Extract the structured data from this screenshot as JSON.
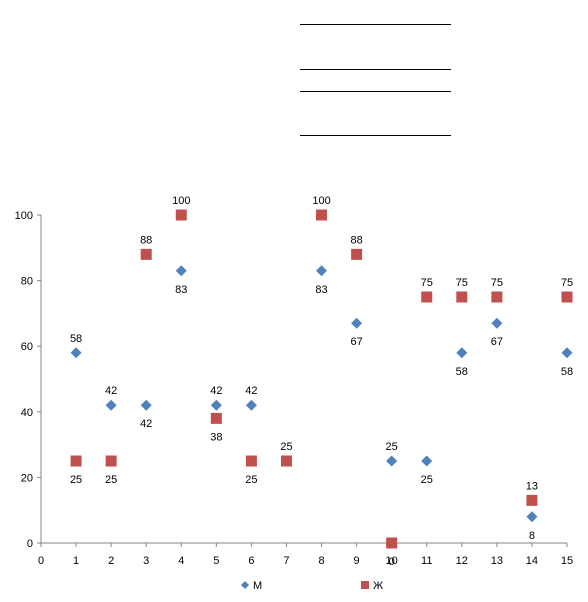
{
  "chart_data": {
    "type": "scatter",
    "title": "",
    "xlabel": "",
    "ylabel": "",
    "xlim": [
      0,
      15
    ],
    "ylim": [
      0,
      100
    ],
    "xticks": [
      0,
      1,
      2,
      3,
      4,
      5,
      6,
      7,
      8,
      9,
      10,
      11,
      12,
      13,
      14,
      15
    ],
    "yticks": [
      0,
      20,
      40,
      60,
      80,
      100
    ],
    "grid": false,
    "legend_position": "bottom",
    "series": [
      {
        "name": "М",
        "marker": "diamond",
        "color": "#4F81BD",
        "x": [
          1,
          2,
          3,
          4,
          5,
          6,
          7,
          8,
          9,
          10,
          11,
          12,
          13,
          14,
          15
        ],
        "y": [
          58,
          42,
          42,
          83,
          42,
          42,
          25,
          83,
          67,
          25,
          25,
          58,
          67,
          8,
          58
        ]
      },
      {
        "name": "Ж",
        "marker": "square",
        "color": "#C0504D",
        "x": [
          1,
          2,
          3,
          4,
          5,
          6,
          7,
          8,
          9,
          10,
          11,
          12,
          13,
          14,
          15
        ],
        "y": [
          25,
          25,
          88,
          100,
          38,
          25,
          25,
          100,
          88,
          0,
          75,
          75,
          75,
          13,
          75
        ]
      }
    ]
  }
}
